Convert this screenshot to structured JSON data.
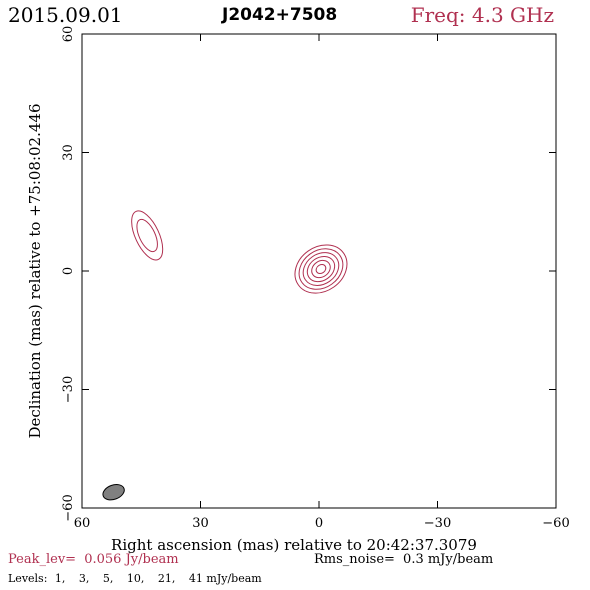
{
  "header": {
    "date": "2015.09.01",
    "source": "J2042+7508",
    "freq": "Freq: 4.3 GHz"
  },
  "chart_data": {
    "type": "contour",
    "xlabel": "Right ascension (mas) relative to 20:42:37.3079",
    "ylabel": "Declination (mas) relative to +75:08:02.446",
    "xlim": [
      60,
      -60
    ],
    "ylim": [
      -60,
      60
    ],
    "xticks": [
      60,
      30,
      0,
      -30,
      -60
    ],
    "yticks": [
      60,
      30,
      0,
      -30,
      -60
    ],
    "xtick_labels": [
      "60",
      "30",
      "0",
      "−30",
      "−60"
    ],
    "ytick_labels": [
      "60",
      "30",
      "0",
      "−30",
      "−60"
    ],
    "contour_color": "#b03050",
    "components": [
      {
        "center": [
          -0.5,
          0.5
        ],
        "contours": [
          {
            "rx": 7.0,
            "ry": 5.6,
            "angle": 35
          },
          {
            "rx": 5.9,
            "ry": 4.7,
            "angle": 35
          },
          {
            "rx": 4.8,
            "ry": 3.8,
            "angle": 35
          },
          {
            "rx": 3.7,
            "ry": 2.9,
            "angle": 35
          },
          {
            "rx": 2.5,
            "ry": 2.0,
            "angle": 35
          },
          {
            "rx": 1.3,
            "ry": 1.05,
            "angle": 35
          }
        ]
      },
      {
        "center": [
          43.5,
          9.0
        ],
        "contours": [
          {
            "rx": 6.7,
            "ry": 3.0,
            "angle": -65
          },
          {
            "rx": 4.4,
            "ry": 2.0,
            "angle": -65
          }
        ]
      }
    ],
    "beam": {
      "center": [
        52,
        -56
      ],
      "rx": 2.8,
      "ry": 1.8,
      "angle": 20,
      "fill": "#808080"
    }
  },
  "footer": {
    "peak_label": "Peak_lev=",
    "peak_value": "0.056 Jy/beam",
    "rms_label": "Rms_noise=",
    "rms_value": "0.3 mJy/beam",
    "levels_label": "Levels:",
    "levels": [
      "1,",
      "3,",
      "5,",
      "10,",
      "21,",
      "41 mJy/beam"
    ]
  }
}
